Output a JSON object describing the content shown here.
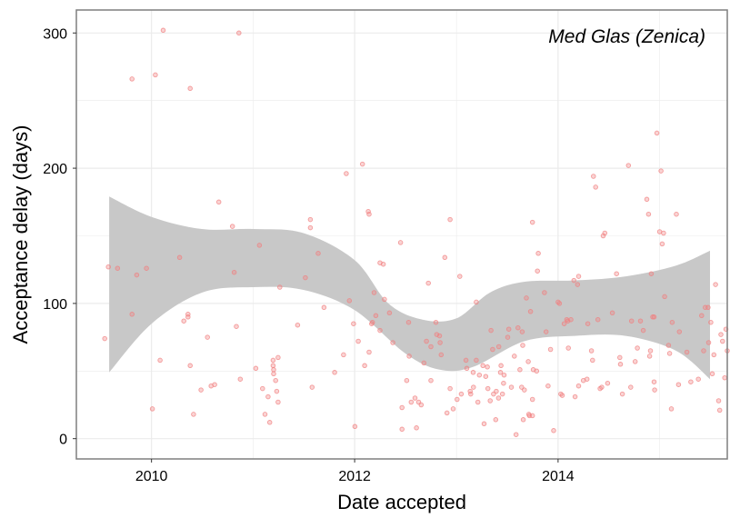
{
  "chart_data": {
    "type": "scatter",
    "title": "",
    "xlabel": "Date accepted",
    "ylabel": "Acceptance delay (days)",
    "annotation": "Med Glas (Zenica)",
    "x_axis": {
      "type": "date",
      "range": [
        "2009-04-06",
        "2015-09-01"
      ],
      "ticks": [
        "2010",
        "2012",
        "2014"
      ]
    },
    "y_axis": {
      "range": [
        -15,
        317
      ],
      "ticks": [
        "0",
        "100",
        "200",
        "300"
      ]
    },
    "grid": true,
    "colors": {
      "points": "#f08080",
      "smooth_band": "#c8c8c8",
      "panel_border": "#7f7f7f",
      "grid": "#ebebeb"
    },
    "smooth_band": {
      "lower": [
        [
          "2009-08-02",
          49
        ],
        [
          "2010-01-01",
          85
        ],
        [
          "2010-07-01",
          108
        ],
        [
          "2011-01-01",
          112
        ],
        [
          "2011-07-01",
          110
        ],
        [
          "2012-01-01",
          95
        ],
        [
          "2012-07-01",
          63
        ],
        [
          "2012-11-01",
          51
        ],
        [
          "2013-03-01",
          53
        ],
        [
          "2013-09-01",
          72
        ],
        [
          "2014-03-01",
          76
        ],
        [
          "2014-09-01",
          76
        ],
        [
          "2015-03-01",
          65
        ],
        [
          "2015-07-01",
          44
        ]
      ],
      "upper": [
        [
          "2009-08-02",
          179
        ],
        [
          "2010-01-01",
          164
        ],
        [
          "2010-07-01",
          155
        ],
        [
          "2011-01-01",
          155
        ],
        [
          "2011-07-01",
          152
        ],
        [
          "2012-01-01",
          132
        ],
        [
          "2012-05-01",
          100
        ],
        [
          "2012-09-01",
          88
        ],
        [
          "2013-01-01",
          89
        ],
        [
          "2013-05-01",
          108
        ],
        [
          "2013-09-01",
          116
        ],
        [
          "2014-03-01",
          117
        ],
        [
          "2014-09-01",
          120
        ],
        [
          "2015-03-01",
          128
        ],
        [
          "2015-07-01",
          139
        ]
      ]
    },
    "points": [
      [
        "2009-07-17",
        74
      ],
      [
        "2009-07-30",
        127
      ],
      [
        "2009-09-01",
        126
      ],
      [
        "2009-10-23",
        266
      ],
      [
        "2009-10-23",
        92
      ],
      [
        "2009-11-09",
        121
      ],
      [
        "2009-12-14",
        126
      ],
      [
        "2010-01-04",
        22
      ],
      [
        "2010-01-15",
        269
      ],
      [
        "2010-02-01",
        58
      ],
      [
        "2010-02-12",
        302
      ],
      [
        "2010-04-12",
        134
      ],
      [
        "2010-04-27",
        87
      ],
      [
        "2010-05-12",
        92
      ],
      [
        "2010-05-12",
        90
      ],
      [
        "2010-05-20",
        259
      ],
      [
        "2010-05-20",
        54
      ],
      [
        "2010-06-01",
        18
      ],
      [
        "2010-06-28",
        36
      ],
      [
        "2010-07-21",
        75
      ],
      [
        "2010-08-03",
        39
      ],
      [
        "2010-08-16",
        40
      ],
      [
        "2010-08-31",
        175
      ],
      [
        "2010-10-19",
        157
      ],
      [
        "2010-10-25",
        123
      ],
      [
        "2010-11-02",
        83
      ],
      [
        "2010-11-11",
        300
      ],
      [
        "2010-11-16",
        44
      ],
      [
        "2011-01-11",
        52
      ],
      [
        "2011-01-24",
        143
      ],
      [
        "2011-02-04",
        37
      ],
      [
        "2011-02-13",
        18
      ],
      [
        "2011-02-24",
        31
      ],
      [
        "2011-03-02",
        12
      ],
      [
        "2011-03-14",
        58
      ],
      [
        "2011-03-14",
        54
      ],
      [
        "2011-03-16",
        51
      ],
      [
        "2011-03-16",
        48
      ],
      [
        "2011-03-23",
        43
      ],
      [
        "2011-03-27",
        35
      ],
      [
        "2011-04-01",
        60
      ],
      [
        "2011-04-01",
        27
      ],
      [
        "2011-04-07",
        112
      ],
      [
        "2011-06-10",
        84
      ],
      [
        "2011-07-08",
        119
      ],
      [
        "2011-07-26",
        156
      ],
      [
        "2011-07-26",
        162
      ],
      [
        "2011-08-01",
        38
      ],
      [
        "2011-08-23",
        137
      ],
      [
        "2011-09-13",
        97
      ],
      [
        "2011-10-21",
        49
      ],
      [
        "2011-11-22",
        62
      ],
      [
        "2011-12-02",
        196
      ],
      [
        "2011-12-13",
        102
      ],
      [
        "2011-12-28",
        85
      ],
      [
        "2012-01-02",
        9
      ],
      [
        "2012-01-14",
        72
      ],
      [
        "2012-01-29",
        203
      ],
      [
        "2012-02-06",
        54
      ],
      [
        "2012-02-19",
        168
      ],
      [
        "2012-02-22",
        166
      ],
      [
        "2012-02-22",
        64
      ],
      [
        "2012-03-02",
        85
      ],
      [
        "2012-03-05",
        86
      ],
      [
        "2012-03-11",
        108
      ],
      [
        "2012-03-17",
        91
      ],
      [
        "2012-04-01",
        130
      ],
      [
        "2012-04-01",
        80
      ],
      [
        "2012-04-13",
        129
      ],
      [
        "2012-04-17",
        103
      ],
      [
        "2012-05-05",
        93
      ],
      [
        "2012-05-17",
        71
      ],
      [
        "2012-06-14",
        145
      ],
      [
        "2012-06-19",
        7
      ],
      [
        "2012-06-19",
        23
      ],
      [
        "2012-07-06",
        43
      ],
      [
        "2012-07-13",
        86
      ],
      [
        "2012-07-15",
        61
      ],
      [
        "2012-07-22",
        27
      ],
      [
        "2012-08-05",
        30
      ],
      [
        "2012-08-10",
        8
      ],
      [
        "2012-08-18",
        27
      ],
      [
        "2012-08-27",
        25
      ],
      [
        "2012-09-06",
        56
      ],
      [
        "2012-09-15",
        72
      ],
      [
        "2012-09-22",
        115
      ],
      [
        "2012-10-01",
        43
      ],
      [
        "2012-10-01",
        68
      ],
      [
        "2012-10-19",
        86
      ],
      [
        "2012-10-22",
        77
      ],
      [
        "2012-11-01",
        76
      ],
      [
        "2012-11-03",
        71
      ],
      [
        "2012-11-07",
        62
      ],
      [
        "2012-11-20",
        134
      ],
      [
        "2012-11-28",
        19
      ],
      [
        "2012-12-09",
        37
      ],
      [
        "2012-12-09",
        162
      ],
      [
        "2012-12-20",
        22
      ],
      [
        "2013-01-03",
        29
      ],
      [
        "2013-01-13",
        120
      ],
      [
        "2013-01-18",
        33
      ],
      [
        "2013-02-04",
        58
      ],
      [
        "2013-02-07",
        52
      ],
      [
        "2013-02-19",
        35
      ],
      [
        "2013-02-21",
        33
      ],
      [
        "2013-03-02",
        49
      ],
      [
        "2013-03-03",
        38
      ],
      [
        "2013-03-13",
        101
      ],
      [
        "2013-03-13",
        58
      ],
      [
        "2013-03-19",
        27
      ],
      [
        "2013-03-24",
        47
      ],
      [
        "2013-04-06",
        54
      ],
      [
        "2013-04-10",
        11
      ],
      [
        "2013-04-16",
        46
      ],
      [
        "2013-04-22",
        53
      ],
      [
        "2013-04-24",
        37
      ],
      [
        "2013-05-02",
        28
      ],
      [
        "2013-05-05",
        80
      ],
      [
        "2013-05-11",
        66
      ],
      [
        "2013-05-14",
        33
      ],
      [
        "2013-05-22",
        14
      ],
      [
        "2013-05-24",
        35
      ],
      [
        "2013-06-01",
        30
      ],
      [
        "2013-06-02",
        68
      ],
      [
        "2013-06-08",
        49
      ],
      [
        "2013-06-10",
        54
      ],
      [
        "2013-06-15",
        33
      ],
      [
        "2013-06-19",
        41
      ],
      [
        "2013-06-21",
        47
      ],
      [
        "2013-07-04",
        75
      ],
      [
        "2013-07-08",
        81
      ],
      [
        "2013-07-17",
        38
      ],
      [
        "2013-07-28",
        61
      ],
      [
        "2013-08-03",
        3
      ],
      [
        "2013-08-10",
        82
      ],
      [
        "2013-08-17",
        51
      ],
      [
        "2013-08-23",
        38
      ],
      [
        "2013-08-25",
        79
      ],
      [
        "2013-08-27",
        69
      ],
      [
        "2013-08-29",
        14
      ],
      [
        "2013-09-02",
        36
      ],
      [
        "2013-09-09",
        104
      ],
      [
        "2013-09-16",
        57
      ],
      [
        "2013-09-18",
        18
      ],
      [
        "2013-09-20",
        17
      ],
      [
        "2013-09-24",
        94
      ],
      [
        "2013-10-01",
        17
      ],
      [
        "2013-10-01",
        160
      ],
      [
        "2013-10-01",
        29
      ],
      [
        "2013-10-04",
        51
      ],
      [
        "2013-10-16",
        50
      ],
      [
        "2013-10-19",
        124
      ],
      [
        "2013-10-22",
        137
      ],
      [
        "2013-11-13",
        108
      ],
      [
        "2013-11-19",
        79
      ],
      [
        "2013-11-26",
        39
      ],
      [
        "2013-12-05",
        66
      ],
      [
        "2013-12-16",
        6
      ],
      [
        "2014-01-01",
        101
      ],
      [
        "2014-01-06",
        100
      ],
      [
        "2014-01-11",
        33
      ],
      [
        "2014-01-16",
        32
      ],
      [
        "2014-01-23",
        85
      ],
      [
        "2014-02-01",
        88
      ],
      [
        "2014-02-05",
        87
      ],
      [
        "2014-02-07",
        67
      ],
      [
        "2014-02-16",
        88
      ],
      [
        "2014-02-27",
        117
      ],
      [
        "2014-03-03",
        31
      ],
      [
        "2014-03-12",
        114
      ],
      [
        "2014-03-16",
        39
      ],
      [
        "2014-03-16",
        120
      ],
      [
        "2014-04-02",
        43
      ],
      [
        "2014-04-15",
        44
      ],
      [
        "2014-04-18",
        85
      ],
      [
        "2014-05-01",
        65
      ],
      [
        "2014-05-05",
        58
      ],
      [
        "2014-05-08",
        194
      ],
      [
        "2014-05-16",
        186
      ],
      [
        "2014-05-24",
        88
      ],
      [
        "2014-06-01",
        37
      ],
      [
        "2014-06-07",
        38
      ],
      [
        "2014-06-12",
        150
      ],
      [
        "2014-06-18",
        152
      ],
      [
        "2014-06-28",
        41
      ],
      [
        "2014-07-15",
        93
      ],
      [
        "2014-07-30",
        122
      ],
      [
        "2014-08-11",
        60
      ],
      [
        "2014-08-13",
        55
      ],
      [
        "2014-08-20",
        33
      ],
      [
        "2014-09-11",
        202
      ],
      [
        "2014-09-19",
        38
      ],
      [
        "2014-09-22",
        87
      ],
      [
        "2014-10-05",
        57
      ],
      [
        "2014-10-13",
        67
      ],
      [
        "2014-10-24",
        87
      ],
      [
        "2014-11-03",
        80
      ],
      [
        "2014-11-16",
        177
      ],
      [
        "2014-11-22",
        166
      ],
      [
        "2014-11-26",
        61
      ],
      [
        "2014-11-29",
        65
      ],
      [
        "2014-12-02",
        122
      ],
      [
        "2014-12-07",
        90
      ],
      [
        "2014-12-12",
        90
      ],
      [
        "2014-12-12",
        42
      ],
      [
        "2014-12-14",
        36
      ],
      [
        "2014-12-22",
        226
      ],
      [
        "2015-01-01",
        153
      ],
      [
        "2015-01-06",
        198
      ],
      [
        "2015-01-10",
        144
      ],
      [
        "2015-01-15",
        152
      ],
      [
        "2015-01-19",
        105
      ],
      [
        "2015-02-02",
        69
      ],
      [
        "2015-02-06",
        63
      ],
      [
        "2015-02-12",
        22
      ],
      [
        "2015-02-15",
        86
      ],
      [
        "2015-03-02",
        166
      ],
      [
        "2015-03-10",
        40
      ],
      [
        "2015-03-13",
        79
      ],
      [
        "2015-04-09",
        64
      ],
      [
        "2015-04-23",
        42
      ],
      [
        "2015-05-20",
        44
      ],
      [
        "2015-06-01",
        91
      ],
      [
        "2015-06-08",
        65
      ],
      [
        "2015-06-14",
        97
      ],
      [
        "2015-06-24",
        97
      ],
      [
        "2015-06-26",
        71
      ],
      [
        "2015-07-04",
        86
      ],
      [
        "2015-07-09",
        48
      ],
      [
        "2015-07-15",
        62
      ],
      [
        "2015-07-21",
        114
      ],
      [
        "2015-08-01",
        28
      ],
      [
        "2015-08-05",
        21
      ],
      [
        "2015-08-09",
        77
      ],
      [
        "2015-08-15",
        72
      ],
      [
        "2015-08-23",
        45
      ],
      [
        "2015-08-27",
        81
      ],
      [
        "2015-09-01",
        65
      ]
    ]
  }
}
